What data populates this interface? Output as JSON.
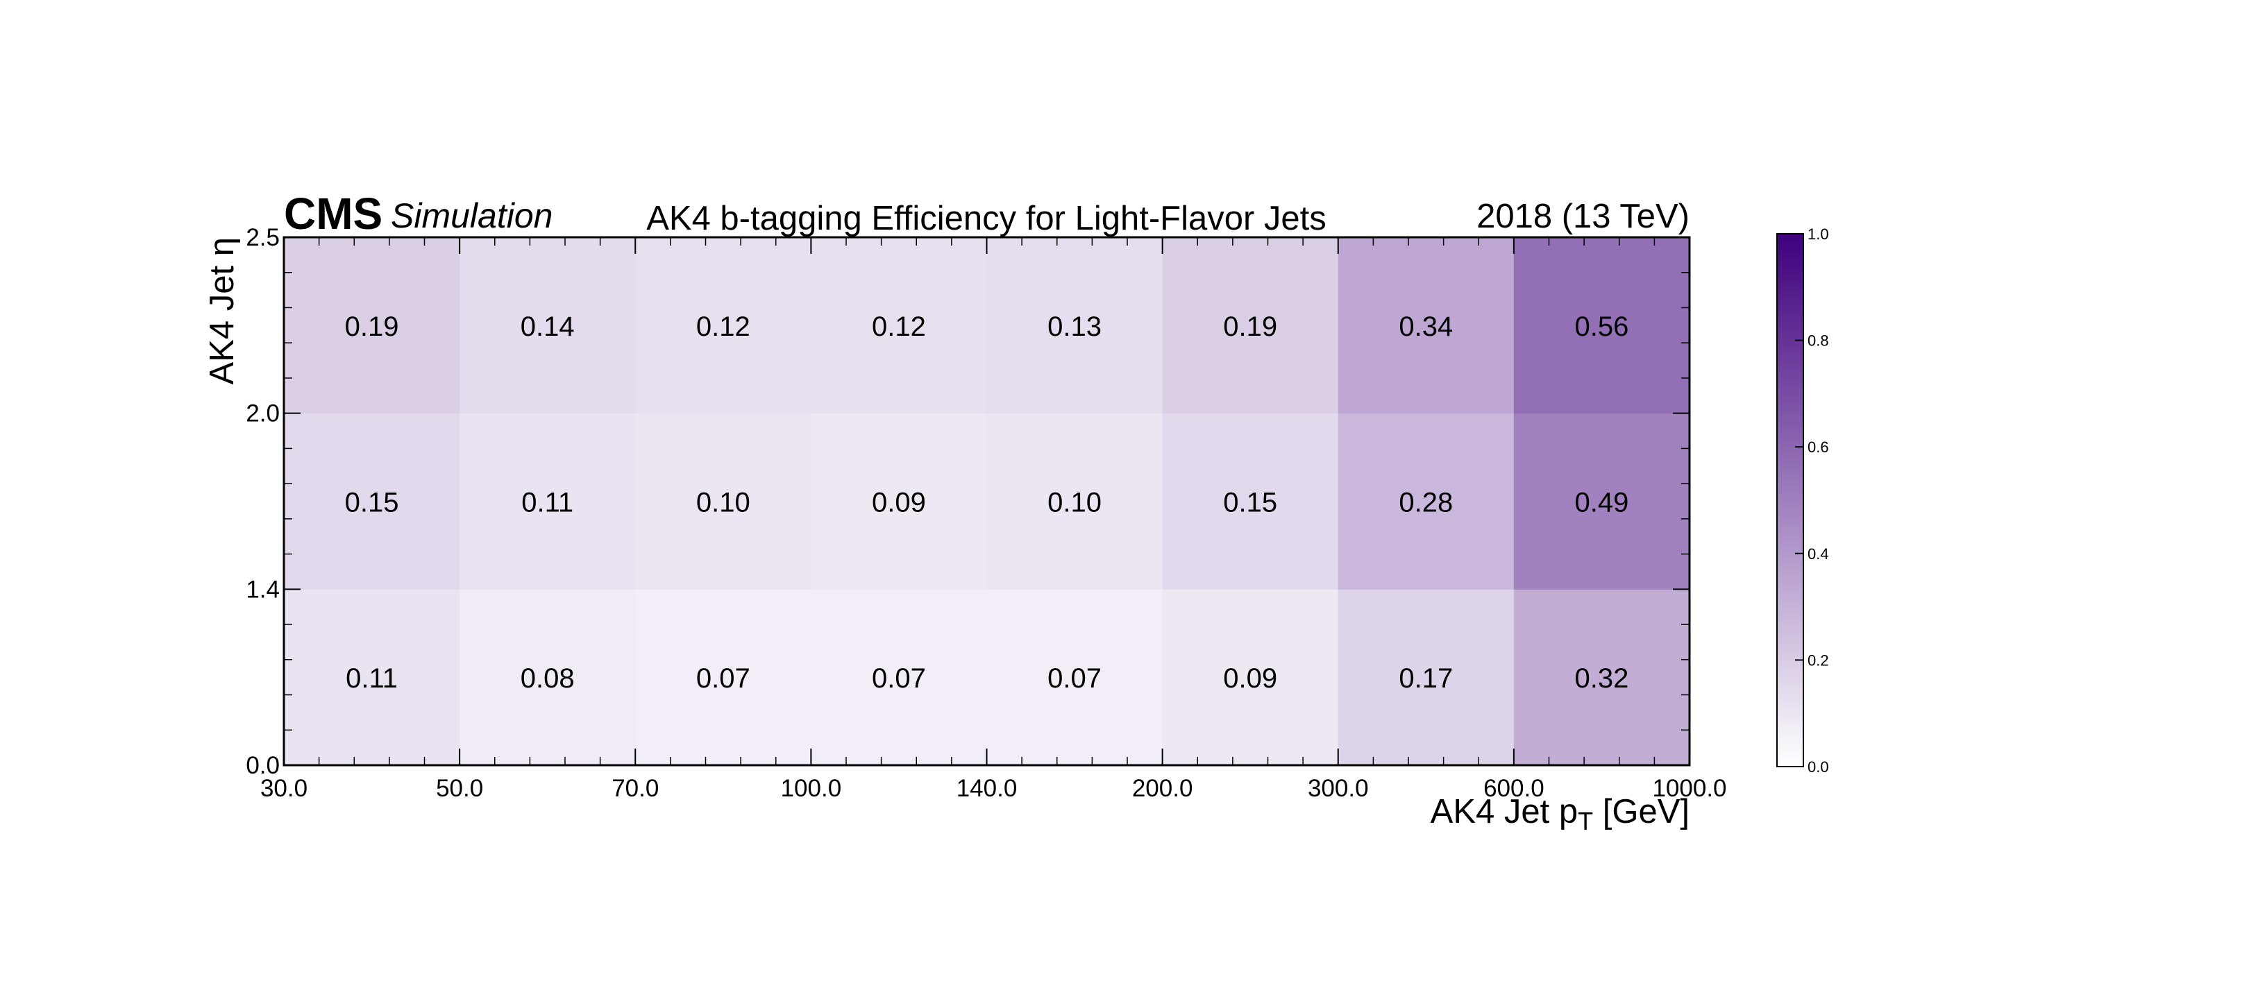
{
  "header": {
    "experiment": "CMS",
    "label": "Simulation",
    "lumi": "2018 (13 TeV)"
  },
  "chart_data": {
    "type": "heatmap",
    "title": "AK4 b-tagging Efficiency for Light-Flavor Jets",
    "xlabel_main": "AK4 Jet p",
    "xlabel_sub": "T",
    "xlabel_unit": " [GeV]",
    "ylabel": "AK4 Jet η",
    "x_edges": [
      30.0,
      50.0,
      70.0,
      100.0,
      140.0,
      200.0,
      300.0,
      600.0,
      1000.0
    ],
    "x_tick_labels": [
      "30.0",
      "50.0",
      "70.0",
      "100.0",
      "140.0",
      "200.0",
      "300.0",
      "600.0",
      "1000.0"
    ],
    "y_edges": [
      0.0,
      1.4,
      2.0,
      2.5
    ],
    "y_tick_labels": [
      "0.0",
      "1.4",
      "2.0",
      "2.5"
    ],
    "values": [
      [
        0.11,
        0.08,
        0.07,
        0.07,
        0.07,
        0.09,
        0.17,
        0.32
      ],
      [
        0.15,
        0.11,
        0.1,
        0.09,
        0.1,
        0.15,
        0.28,
        0.49
      ],
      [
        0.19,
        0.14,
        0.12,
        0.12,
        0.13,
        0.19,
        0.34,
        0.56
      ]
    ],
    "value_labels": [
      [
        "0.11",
        "0.08",
        "0.07",
        "0.07",
        "0.07",
        "0.09",
        "0.17",
        "0.32"
      ],
      [
        "0.15",
        "0.11",
        "0.10",
        "0.09",
        "0.10",
        "0.15",
        "0.28",
        "0.49"
      ],
      [
        "0.19",
        "0.14",
        "0.12",
        "0.12",
        "0.13",
        "0.19",
        "0.34",
        "0.56"
      ]
    ],
    "colorbar": {
      "range": [
        0.0,
        1.0
      ],
      "ticks": [
        0.0,
        0.2,
        0.4,
        0.6,
        0.8,
        1.0
      ],
      "tick_labels": [
        "0.0",
        "0.2",
        "0.4",
        "0.6",
        "0.8",
        "1.0"
      ],
      "color_low": "#ffffff",
      "color_high": "#3f007d"
    }
  }
}
